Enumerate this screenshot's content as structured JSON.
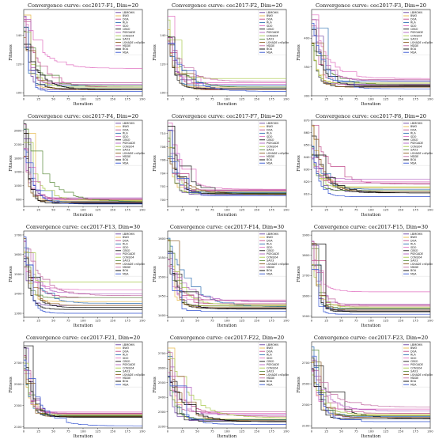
{
  "legend_labels": [
    "LBMOHN",
    "BWO",
    "DOA",
    "RLA",
    "SDO",
    "CBSO",
    "PSEGADE",
    "CONSO4",
    "SAO3",
    "LSHADE cnEpSin",
    "MDDE",
    "BOA",
    "MSA"
  ],
  "series_colors": [
    "#6a3fa0",
    "#e6b84a",
    "#c04a8a",
    "#2b6cb0",
    "#e070c0",
    "#1a1a1a",
    "#b05fc0",
    "#a8c84a",
    "#5a8a3a",
    "#8a5a20",
    "#c06aa0",
    "#000000",
    "#3050d0"
  ],
  "chart_data": [
    {
      "type": "line",
      "title": "Convergence curve: cec2017-F1, Dim=20",
      "xlabel": "Iteration",
      "ylabel": "Fitness",
      "xlim": [
        0,
        200
      ],
      "ylim": [
        98,
        158
      ],
      "xticks": [
        0,
        25,
        50,
        75,
        100,
        125,
        150,
        175,
        200
      ],
      "yticks": [
        100,
        120,
        140
      ],
      "ytick_labels": [
        "100",
        "120",
        "140"
      ],
      "series_final": [
        102,
        103,
        104,
        105,
        117,
        103,
        106,
        104,
        105,
        102,
        107,
        102,
        101
      ]
    },
    {
      "type": "line",
      "title": "Convergence curve: cec2017-F2, Dim=20",
      "xlabel": "Iteration",
      "ylabel": "Fitness",
      "xlim": [
        0,
        200
      ],
      "ylim": [
        98,
        158
      ],
      "xticks": [
        0,
        25,
        50,
        75,
        100,
        125,
        150,
        175,
        200
      ],
      "yticks": [
        100,
        120,
        140
      ],
      "ytick_labels": [
        "100",
        "120",
        "140"
      ],
      "series_final": [
        103,
        104,
        102,
        105,
        107,
        103,
        106,
        110,
        104,
        102,
        108,
        103,
        101
      ]
    },
    {
      "type": "line",
      "title": "Convergence curve: cec2017-F3, Dim=20",
      "xlabel": "Iteration",
      "ylabel": "Fitness",
      "xlim": [
        0,
        200
      ],
      "ylim": [
        300,
        450
      ],
      "xticks": [
        0,
        25,
        50,
        75,
        100,
        125,
        150,
        175,
        200
      ],
      "yticks": [
        300,
        350,
        400
      ],
      "ytick_labels": [
        "300",
        "350",
        "400"
      ],
      "series_final": [
        320,
        322,
        318,
        325,
        330,
        316,
        326,
        322,
        319,
        315,
        328,
        317,
        312
      ]
    },
    {
      "type": "line",
      "title": "Convergence curve: cec2017-F4, Dim=20",
      "xlabel": "Iteration",
      "ylabel": "Fitness",
      "xlim": [
        0,
        200
      ],
      "ylim": [
        400,
        2900
      ],
      "xticks": [
        0,
        25,
        50,
        75,
        100,
        125,
        150,
        175,
        200
      ],
      "yticks": [
        600,
        1000,
        1400,
        1800,
        2200,
        2600
      ],
      "ytick_labels": [
        "600",
        "1000",
        "1400",
        "1800",
        "2200",
        "2600"
      ],
      "series_final": [
        520,
        560,
        600,
        540,
        610,
        500,
        650,
        580,
        540,
        530,
        620,
        490,
        470
      ]
    },
    {
      "type": "line",
      "title": "Convergence curve: cec2017-F7, Dim=20",
      "xlabel": "Iteration",
      "ylabel": "Fitness",
      "xlim": [
        0,
        200
      ],
      "ylim": [
        699,
        712
      ],
      "xticks": [
        0,
        25,
        50,
        75,
        100,
        125,
        150,
        175,
        200
      ],
      "yticks": [
        700,
        702,
        704,
        706,
        708,
        710
      ],
      "ytick_labels": [
        "700",
        "702",
        "704",
        "706",
        "708",
        "710"
      ],
      "series_final": [
        700.8,
        701.0,
        701.4,
        701.1,
        701.6,
        700.9,
        701.3,
        701.2,
        701.0,
        700.8,
        701.5,
        700.9,
        700.6
      ]
    },
    {
      "type": "line",
      "title": "Convergence curve: cec2017-F8, Dim=20",
      "xlabel": "Iteration",
      "ylabel": "Fitness",
      "xlim": [
        0,
        200
      ],
      "ylim": [
        800,
        870
      ],
      "xticks": [
        0,
        25,
        50,
        75,
        100,
        125,
        150,
        175,
        200
      ],
      "yticks": [
        810,
        820,
        830,
        840,
        850,
        860,
        870
      ],
      "ytick_labels": [
        "810",
        "820",
        "830",
        "840",
        "850",
        "860",
        "870"
      ],
      "series_final": [
        812,
        815,
        818,
        814,
        820,
        811,
        822,
        816,
        813,
        812,
        819,
        811,
        808
      ]
    },
    {
      "type": "line",
      "title": "Convergence curve: cec2017-F13, Dim=30",
      "xlabel": "Iteration",
      "ylabel": "Fitness",
      "xlim": [
        0,
        200
      ],
      "ylim": [
        1280,
        1720
      ],
      "xticks": [
        0,
        25,
        50,
        75,
        100,
        125,
        150,
        175,
        200
      ],
      "yticks": [
        1300,
        1400,
        1500,
        1600,
        1700
      ],
      "ytick_labels": [
        "1300",
        "1400",
        "1500",
        "1600",
        "1700"
      ],
      "series_final": [
        1340,
        1360,
        1380,
        1350,
        1420,
        1330,
        1400,
        1460,
        1380,
        1340,
        1390,
        1320,
        1300
      ]
    },
    {
      "type": "line",
      "title": "Convergence curve: cec2017-F14, Dim=30",
      "xlabel": "Iteration",
      "ylabel": "Fitness",
      "xlim": [
        0,
        200
      ],
      "ylim": [
        1395,
        1620
      ],
      "xticks": [
        0,
        25,
        50,
        75,
        100,
        125,
        150,
        175,
        200
      ],
      "yticks": [
        1400,
        1450,
        1500,
        1550,
        1600
      ],
      "ytick_labels": [
        "1400",
        "1450",
        "1500",
        "1550",
        "1600"
      ],
      "series_final": [
        1420,
        1425,
        1430,
        1422,
        1440,
        1418,
        1435,
        1428,
        1424,
        1420,
        1438,
        1416,
        1410
      ]
    },
    {
      "type": "line",
      "title": "Convergence curve: cec2017-F15, Dim=30",
      "xlabel": "Iteration",
      "ylabel": "Fitness",
      "xlim": [
        0,
        200
      ],
      "ylim": [
        1495,
        1920
      ],
      "xticks": [
        0,
        25,
        50,
        75,
        100,
        125,
        150,
        175,
        200
      ],
      "yticks": [
        1500,
        1600,
        1700,
        1800,
        1900
      ],
      "ytick_labels": [
        "1500",
        "1600",
        "1700",
        "1800",
        "1900"
      ],
      "series_final": [
        1530,
        1540,
        1550,
        1535,
        1620,
        1525,
        1560,
        1545,
        1538,
        1530,
        1555,
        1522,
        1510
      ]
    },
    {
      "type": "line",
      "title": "Convergence curve: cec2017-F21, Dim=20",
      "xlabel": "Iteration",
      "ylabel": "Fitness",
      "xlim": [
        0,
        200
      ],
      "ylim": [
        2090,
        2900
      ],
      "xticks": [
        0,
        25,
        50,
        75,
        100,
        125,
        150,
        175,
        200
      ],
      "yticks": [
        2100,
        2300,
        2500,
        2700
      ],
      "ytick_labels": [
        "2100",
        "2300",
        "2500",
        "2700"
      ],
      "series_final": [
        2200,
        2210,
        2230,
        2205,
        2240,
        2195,
        2220,
        2215,
        2205,
        2200,
        2225,
        2190,
        2110
      ]
    },
    {
      "type": "line",
      "title": "Convergence curve: cec2017-F22, Dim=20",
      "xlabel": "Iteration",
      "ylabel": "Fitness",
      "xlim": [
        0,
        200
      ],
      "ylim": [
        2190,
        2780
      ],
      "xticks": [
        0,
        25,
        50,
        75,
        100,
        125,
        150,
        175,
        200
      ],
      "yticks": [
        2200,
        2300,
        2400,
        2500,
        2600,
        2700
      ],
      "ytick_labels": [
        "2200",
        "2300",
        "2400",
        "2500",
        "2600",
        "2700"
      ],
      "series_final": [
        2240,
        2250,
        2270,
        2245,
        2290,
        2235,
        2280,
        2260,
        2248,
        2240,
        2300,
        2232,
        2215
      ]
    },
    {
      "type": "line",
      "title": "Convergence curve: cec2017-F23, Dim=20",
      "xlabel": "Iteration",
      "ylabel": "Fitness",
      "xlim": [
        0,
        200
      ],
      "ylim": [
        2080,
        2900
      ],
      "xticks": [
        0,
        25,
        50,
        75,
        100,
        125,
        150,
        175,
        200
      ],
      "yticks": [
        2100,
        2300,
        2500,
        2700
      ],
      "ytick_labels": [
        "2100",
        "2300",
        "2500",
        "2700"
      ],
      "series_final": [
        2180,
        2200,
        2220,
        2190,
        2260,
        2170,
        2240,
        2210,
        2195,
        2180,
        2280,
        2165,
        2140
      ]
    }
  ]
}
